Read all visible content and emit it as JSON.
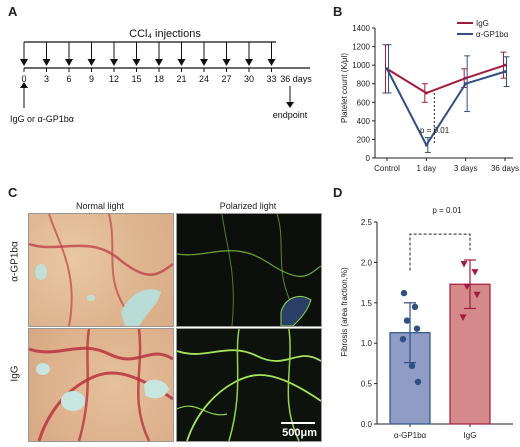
{
  "panel_labels": {
    "a": "A",
    "b": "B",
    "c": "C",
    "d": "D"
  },
  "timeline": {
    "title": "CCl₄ injections",
    "days": [
      0,
      3,
      6,
      9,
      12,
      15,
      18,
      21,
      24,
      27,
      30,
      33
    ],
    "end_label": "36 days",
    "endpoint_label": "endpoint",
    "treatment_label": "IgG or α-GP1bα"
  },
  "micrographs": {
    "normal_light": "Normal light",
    "polarized_light": "Polarized light",
    "row_top": "α-GP1bα",
    "row_bottom": "IgG",
    "scale_bar": "500μm"
  },
  "colors": {
    "igg": "#a31b3c",
    "agp": "#2f4f85",
    "igg_fill": "#d48a8a",
    "agp_fill": "#8f9cc6"
  },
  "chart_data": [
    {
      "type": "line",
      "panel": "B",
      "ylabel": "Platelet count (K/μl)",
      "categories": [
        "Control",
        "1 day",
        "3 days",
        "36 days"
      ],
      "yticks": [
        0,
        200,
        400,
        600,
        800,
        1000,
        1200,
        1400
      ],
      "ylim": [
        0,
        1400
      ],
      "series": [
        {
          "name": "IgG",
          "values": [
            960,
            700,
            860,
            1000
          ],
          "err": [
            260,
            100,
            100,
            140
          ]
        },
        {
          "name": "α-GP1bα",
          "values": [
            960,
            140,
            800,
            930
          ],
          "err": [
            260,
            80,
            300,
            160
          ]
        }
      ],
      "annotation": "p = 0.01"
    },
    {
      "type": "bar",
      "panel": "D",
      "ylabel": "Fibrosis (area fraction,%)",
      "categories": [
        "α-GP1bα",
        "IgG"
      ],
      "values": [
        1.13,
        1.73
      ],
      "err": [
        0.37,
        0.3
      ],
      "points": [
        [
          1.62,
          1.45,
          1.28,
          1.18,
          1.05,
          0.72,
          0.52
        ],
        [
          1.98,
          1.88,
          1.7,
          1.6,
          1.32
        ]
      ],
      "yticks": [
        0.0,
        0.5,
        1.0,
        1.5,
        2.0,
        2.5
      ],
      "ylim": [
        0,
        2.5
      ],
      "annotation": "p = 0.01"
    }
  ]
}
